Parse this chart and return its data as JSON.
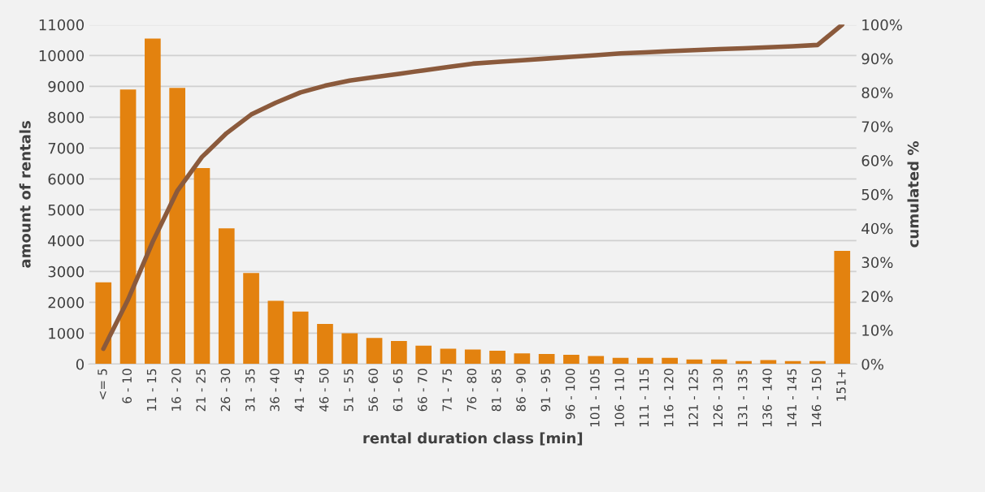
{
  "chart_data": {
    "type": "bar",
    "xlabel": "rental duration class [min]",
    "ylabel": "amount of rentals",
    "y2label": "cumulated %",
    "categories": [
      "<= 5",
      "6 - 10",
      "11 - 15",
      "16 - 20",
      "21 - 25",
      "26 - 30",
      "31 - 35",
      "36 - 40",
      "41 - 45",
      "46 - 50",
      "51 - 55",
      "56 - 60",
      "61 - 65",
      "66 - 70",
      "71 - 75",
      "76 - 80",
      "81 - 85",
      "86 - 90",
      "91 - 95",
      "96 - 100",
      "101 - 105",
      "106 - 110",
      "111 - 115",
      "116 - 120",
      "121 - 125",
      "126 - 130",
      "131 - 135",
      "136 - 140",
      "141 - 145",
      "146 - 150",
      "151+"
    ],
    "series": [
      {
        "color": "#e3820f",
        "values": [
          2650,
          8900,
          10550,
          8950,
          6350,
          4400,
          2950,
          2050,
          1700,
          1300,
          1000,
          850,
          750,
          600,
          500,
          470,
          430,
          350,
          330,
          300,
          260,
          200,
          200,
          200,
          150,
          150,
          100,
          130,
          100,
          100,
          3670
        ]
      },
      {
        "type": "line",
        "axis": "y2",
        "color": "#8b5a3c",
        "values": [
          4.5,
          19,
          36,
          51,
          61,
          68,
          73.5,
          77,
          80,
          82,
          83.5,
          84.5,
          85.5,
          86.5,
          87.5,
          88.5,
          89,
          89.5,
          90,
          90.5,
          91,
          91.5,
          91.8,
          92.2,
          92.5,
          92.8,
          93,
          93.3,
          93.6,
          94,
          100
        ]
      }
    ],
    "ylim": [
      0,
      11000
    ],
    "yticks": [
      0,
      1000,
      2000,
      3000,
      4000,
      5000,
      6000,
      7000,
      8000,
      9000,
      10000,
      11000
    ],
    "y2lim": [
      0,
      100
    ],
    "y2ticks": [
      {
        "value": 0,
        "label": "0%"
      },
      {
        "value": 10,
        "label": "10%"
      },
      {
        "value": 20,
        "label": "20%"
      },
      {
        "value": 30,
        "label": "30%"
      },
      {
        "value": 40,
        "label": "40%"
      },
      {
        "value": 50,
        "label": "50%"
      },
      {
        "value": 60,
        "label": "60%"
      },
      {
        "value": 70,
        "label": "70%"
      },
      {
        "value": 80,
        "label": "80%"
      },
      {
        "value": 90,
        "label": "90%"
      },
      {
        "value": 100,
        "label": "100%"
      }
    ],
    "grid": "y"
  }
}
